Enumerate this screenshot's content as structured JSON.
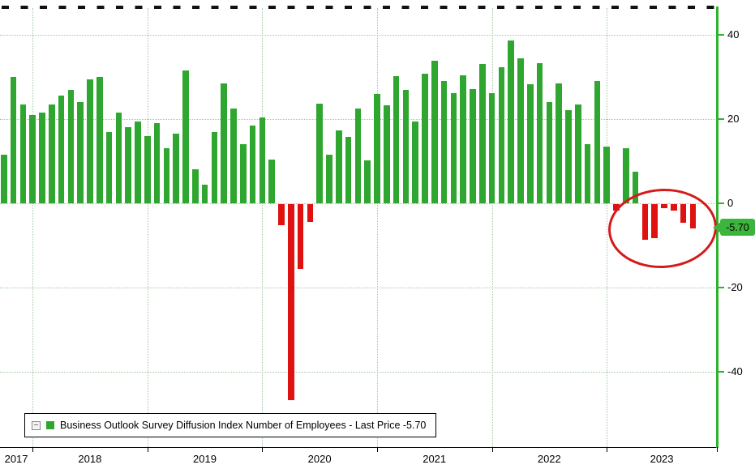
{
  "legend": {
    "label": "Business Outlook Survey Diffusion Index Number of Employees - Last Price -5.70"
  },
  "chart_data": {
    "type": "bar",
    "title": "Business Outlook Survey Diffusion Index Number of Employees",
    "legend_label": "Business Outlook Survey Diffusion Index Number of Employees - Last Price -5.70",
    "frequency": "monthly",
    "start": "2017-10",
    "end": "2023-10",
    "values": [
      11.5,
      30.0,
      23.5,
      21.0,
      21.5,
      23.5,
      25.5,
      27.0,
      24.0,
      29.5,
      30.0,
      17.0,
      21.5,
      18.0,
      19.5,
      16.0,
      19.0,
      13.0,
      16.5,
      31.5,
      8.0,
      4.5,
      17.0,
      28.5,
      22.5,
      14.0,
      18.5,
      20.3,
      10.3,
      -5.0,
      -46.5,
      -15.3,
      -4.3,
      23.6,
      11.6,
      17.4,
      15.7,
      22.5,
      10.2,
      26.0,
      23.3,
      30.1,
      26.9,
      19.5,
      30.7,
      33.8,
      29.0,
      26.1,
      30.4,
      27.2,
      33.0,
      26.1,
      32.3,
      38.6,
      34.5,
      28.3,
      33.2,
      24.1,
      28.5,
      22.2,
      23.4,
      14.0,
      29.1,
      13.5,
      -1.5,
      13.0,
      7.5,
      -8.5,
      -8.0,
      -1.0,
      -1.5,
      -4.5,
      -5.7
    ],
    "x_tick_years": [
      "2017",
      "2018",
      "2019",
      "2020",
      "2021",
      "2022",
      "2023"
    ],
    "y_axis_ticks": [
      {
        "label": "40",
        "v": 40
      },
      {
        "label": "20",
        "v": 20
      },
      {
        "label": "0",
        "v": 0
      },
      {
        "label": "-20",
        "v": -20
      },
      {
        "label": "-40",
        "v": -40
      }
    ],
    "ylim": [
      -57.9,
      46.3
    ],
    "grid": "dotted",
    "legend_position": "bottom-left",
    "last_price_label": "-5.70",
    "last_price_value": -5.7,
    "bar_colors": {
      "positive": "#2fa62f",
      "negative": "#e01111"
    },
    "axis_color": "#2db32d",
    "annotation": {
      "shape": "ellipse",
      "color": "#d41a1a"
    }
  }
}
